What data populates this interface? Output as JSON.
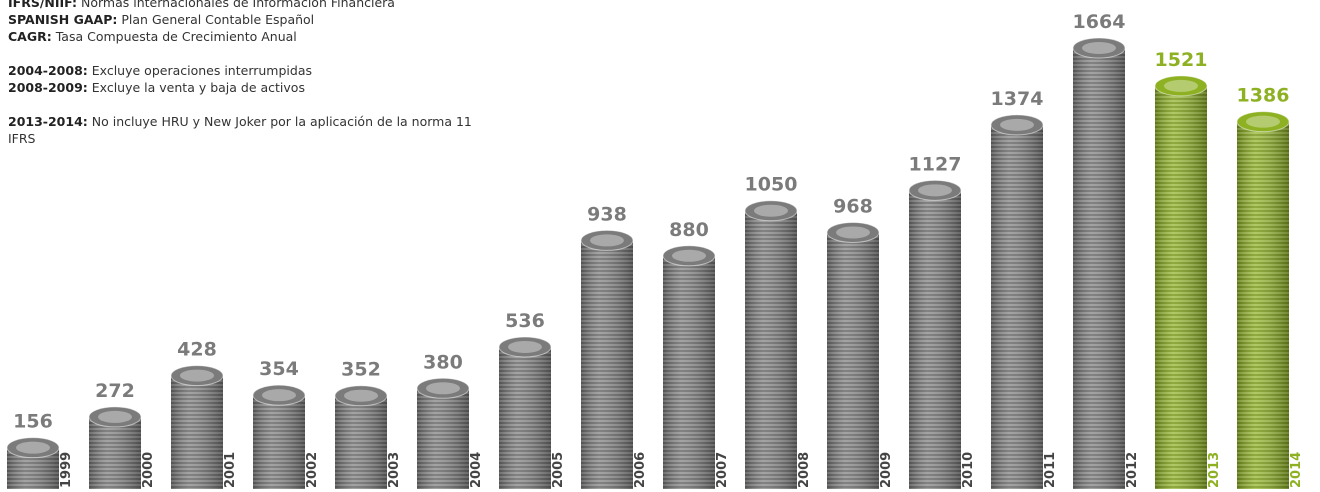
{
  "chart_data": {
    "type": "bar",
    "notes": [
      {
        "label": "IFRS/NIIF:",
        "text": "Normas internacionales de Información Financiera"
      },
      {
        "label": "SPANISH GAAP:",
        "text": "Plan General Contable Español"
      },
      {
        "label": "CAGR:",
        "text": "Tasa Compuesta de Crecimiento Anual"
      },
      {
        "label": "2004-2008:",
        "text": "Excluye operaciones interrumpidas"
      },
      {
        "label": "2008-2009:",
        "text": "Excluye la venta y baja de activos"
      },
      {
        "label": "2013-2014:",
        "text": "No incluye HRU y New Joker por la aplicación de la norma 11 IFRS"
      }
    ],
    "categories": [
      "1999",
      "2000",
      "2001",
      "2002",
      "2003",
      "2004",
      "2005",
      "2006",
      "2007",
      "2008",
      "2009",
      "2010",
      "2011",
      "2012",
      "2013",
      "2014"
    ],
    "values": [
      156,
      272,
      428,
      354,
      352,
      380,
      536,
      938,
      880,
      1050,
      968,
      1127,
      1374,
      1664,
      1521,
      1386
    ],
    "colors": [
      "#7b7b7b",
      "#7b7b7b",
      "#7b7b7b",
      "#7b7b7b",
      "#7b7b7b",
      "#7b7b7b",
      "#7b7b7b",
      "#7b7b7b",
      "#7b7b7b",
      "#7b7b7b",
      "#7b7b7b",
      "#7b7b7b",
      "#7b7b7b",
      "#7b7b7b",
      "#8db122",
      "#8db122"
    ]
  }
}
